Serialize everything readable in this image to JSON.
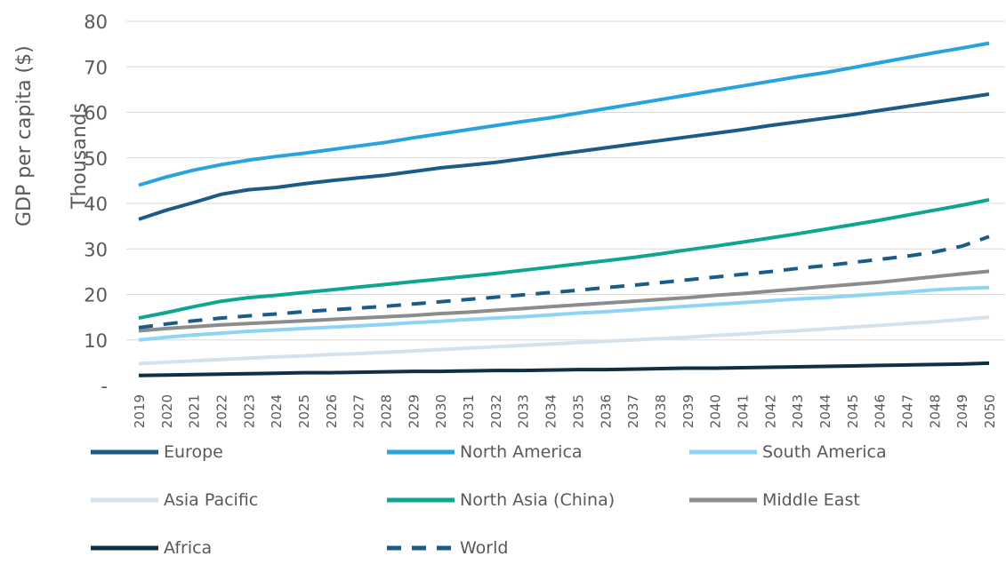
{
  "chart_data": {
    "type": "line",
    "ylabel": "GDP per capita ($)",
    "yunit_label": "Thousands",
    "ylim": [
      0,
      80
    ],
    "yticks": [
      "-",
      "10",
      "20",
      "30",
      "40",
      "50",
      "60",
      "70",
      "80"
    ],
    "grid": true,
    "legend_position": "bottom",
    "x": [
      "2019",
      "2020",
      "2021",
      "2022",
      "2023",
      "2024",
      "2025",
      "2026",
      "2027",
      "2028",
      "2029",
      "2030",
      "2031",
      "2032",
      "2033",
      "2034",
      "2035",
      "2036",
      "2037",
      "2038",
      "2039",
      "2040",
      "2041",
      "2042",
      "2043",
      "2044",
      "2045",
      "2046",
      "2047",
      "2048",
      "2049",
      "2050"
    ],
    "series": [
      {
        "name": "Europe",
        "color": "#1b5b87",
        "dash": false,
        "values": [
          36.5,
          38.5,
          40.2,
          42.0,
          43.0,
          43.5,
          44.3,
          45.0,
          45.6,
          46.2,
          47.0,
          47.8,
          48.4,
          49.0,
          49.8,
          50.6,
          51.4,
          52.2,
          53.0,
          53.8,
          54.6,
          55.4,
          56.2,
          57.1,
          57.9,
          58.7,
          59.5,
          60.4,
          61.3,
          62.2,
          63.1,
          64.0
        ]
      },
      {
        "name": "North America",
        "color": "#2aa3dd",
        "dash": false,
        "values": [
          44.0,
          45.8,
          47.3,
          48.5,
          49.5,
          50.3,
          51.0,
          51.8,
          52.6,
          53.4,
          54.4,
          55.3,
          56.2,
          57.1,
          58.0,
          58.8,
          59.8,
          60.8,
          61.8,
          62.8,
          63.8,
          64.8,
          65.8,
          66.8,
          67.8,
          68.7,
          69.8,
          70.9,
          72.0,
          73.1,
          74.1,
          75.2
        ]
      },
      {
        "name": "South America",
        "color": "#8dd4f5",
        "dash": false,
        "values": [
          10.0,
          10.6,
          11.1,
          11.5,
          11.9,
          12.2,
          12.5,
          12.8,
          13.1,
          13.4,
          13.8,
          14.1,
          14.5,
          14.8,
          15.1,
          15.5,
          15.9,
          16.2,
          16.6,
          17.0,
          17.4,
          17.8,
          18.2,
          18.6,
          19.0,
          19.3,
          19.7,
          20.1,
          20.5,
          21.0,
          21.3,
          21.5
        ]
      },
      {
        "name": "Asia Pacific",
        "color": "#d4e2ee",
        "dash": false,
        "values": [
          4.8,
          5.1,
          5.4,
          5.7,
          6.0,
          6.3,
          6.5,
          6.8,
          7.0,
          7.3,
          7.6,
          7.9,
          8.2,
          8.5,
          8.8,
          9.1,
          9.4,
          9.7,
          10.0,
          10.3,
          10.6,
          11.0,
          11.3,
          11.7,
          12.0,
          12.4,
          12.8,
          13.2,
          13.6,
          14.0,
          14.5,
          15.0
        ]
      },
      {
        "name": "North Asia (China)",
        "color": "#10a58f",
        "dash": false,
        "values": [
          14.8,
          16.0,
          17.3,
          18.5,
          19.3,
          19.8,
          20.4,
          21.0,
          21.6,
          22.2,
          22.8,
          23.4,
          24.0,
          24.6,
          25.3,
          26.0,
          26.7,
          27.4,
          28.1,
          28.9,
          29.8,
          30.6,
          31.5,
          32.4,
          33.3,
          34.3,
          35.3,
          36.3,
          37.4,
          38.5,
          39.6,
          40.8
        ]
      },
      {
        "name": "Middle East",
        "color": "#8c8c8c",
        "dash": false,
        "values": [
          12.0,
          12.5,
          12.9,
          13.3,
          13.6,
          13.9,
          14.2,
          14.5,
          14.8,
          15.1,
          15.4,
          15.8,
          16.1,
          16.5,
          16.9,
          17.3,
          17.7,
          18.1,
          18.5,
          18.9,
          19.3,
          19.8,
          20.2,
          20.7,
          21.2,
          21.7,
          22.2,
          22.7,
          23.3,
          23.9,
          24.5,
          25.1
        ]
      },
      {
        "name": "Africa",
        "color": "#0f2f44",
        "dash": false,
        "values": [
          2.2,
          2.3,
          2.4,
          2.5,
          2.6,
          2.7,
          2.8,
          2.8,
          2.9,
          3.0,
          3.1,
          3.1,
          3.2,
          3.3,
          3.3,
          3.4,
          3.5,
          3.5,
          3.6,
          3.7,
          3.8,
          3.8,
          3.9,
          4.0,
          4.1,
          4.2,
          4.3,
          4.4,
          4.5,
          4.6,
          4.7,
          4.9
        ]
      },
      {
        "name": "World",
        "color": "#1b5b87",
        "dash": true,
        "values": [
          12.7,
          13.5,
          14.2,
          14.8,
          15.3,
          15.7,
          16.2,
          16.6,
          17.0,
          17.4,
          17.9,
          18.4,
          18.9,
          19.4,
          19.9,
          20.4,
          20.9,
          21.5,
          22.0,
          22.6,
          23.2,
          23.8,
          24.4,
          25.0,
          25.7,
          26.3,
          27.0,
          27.7,
          28.4,
          29.3,
          30.6,
          32.7
        ]
      }
    ]
  }
}
